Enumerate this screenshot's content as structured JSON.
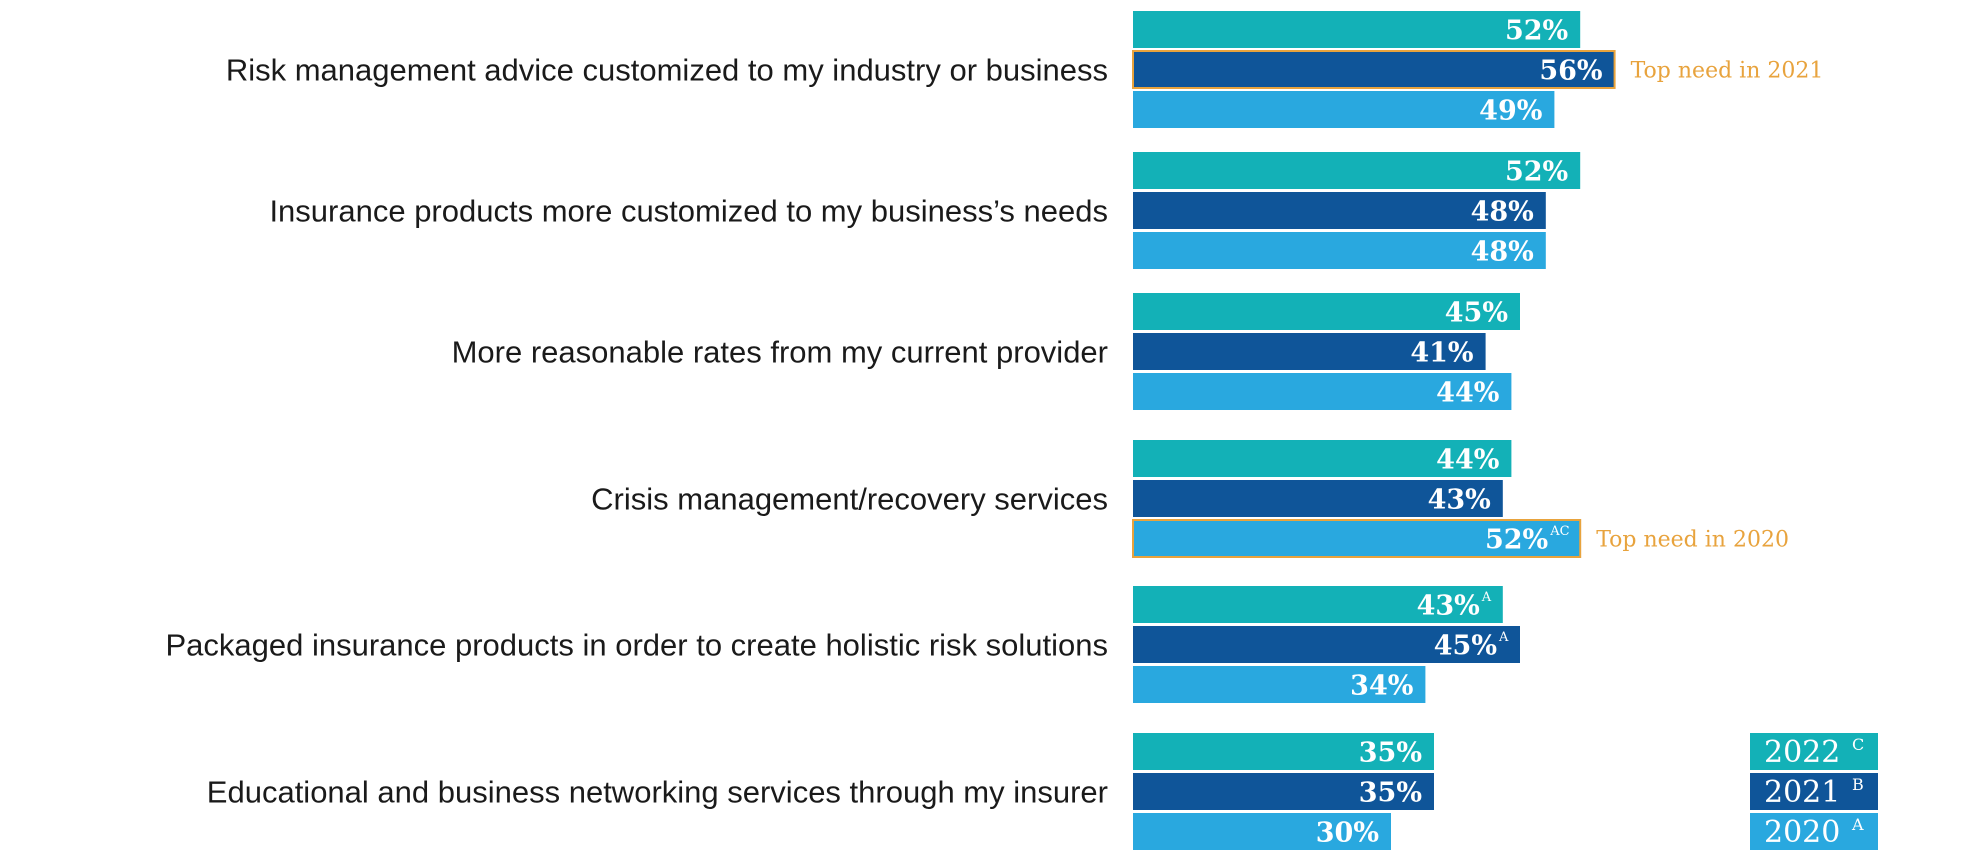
{
  "chart_data": {
    "type": "bar",
    "orientation": "horizontal",
    "categories": [
      "Risk management advice customized to my industry or business",
      "Insurance products more customized to my business’s needs",
      "More reasonable rates from my current provider",
      "Crisis management/recovery services",
      "Packaged insurance products in order to create holistic risk solutions",
      "Educational and business networking services through my insurer"
    ],
    "series": [
      {
        "name": "2022",
        "marker": "C",
        "color": "#13b1b7",
        "values": [
          52,
          52,
          45,
          44,
          43,
          35
        ],
        "labels": [
          "52%",
          "52%",
          "45%",
          "44%",
          "43%",
          "35%"
        ],
        "superscripts": [
          "",
          "",
          "",
          "",
          "A",
          ""
        ]
      },
      {
        "name": "2021",
        "marker": "B",
        "color": "#0f5599",
        "values": [
          56,
          48,
          41,
          43,
          45,
          35
        ],
        "labels": [
          "56%",
          "48%",
          "41%",
          "43%",
          "45%",
          "35%"
        ],
        "superscripts": [
          "",
          "",
          "",
          "",
          "A",
          ""
        ]
      },
      {
        "name": "2020",
        "marker": "A",
        "color": "#29a8df",
        "values": [
          49,
          48,
          44,
          52,
          34,
          30
        ],
        "labels": [
          "49%",
          "48%",
          "44%",
          "52%",
          "34%",
          "30%"
        ],
        "superscripts": [
          "",
          "",
          "",
          "AC",
          "",
          ""
        ]
      }
    ],
    "annotations": [
      {
        "text": "Top need in 2021",
        "category_index": 0,
        "series_index": 1
      },
      {
        "text": "Top need in 2020",
        "category_index": 3,
        "series_index": 2
      }
    ],
    "highlight_color": "#e8a33d",
    "xlim": [
      0,
      100
    ],
    "legend_position": "bottom-right",
    "title": "",
    "xlabel": "",
    "ylabel": ""
  }
}
